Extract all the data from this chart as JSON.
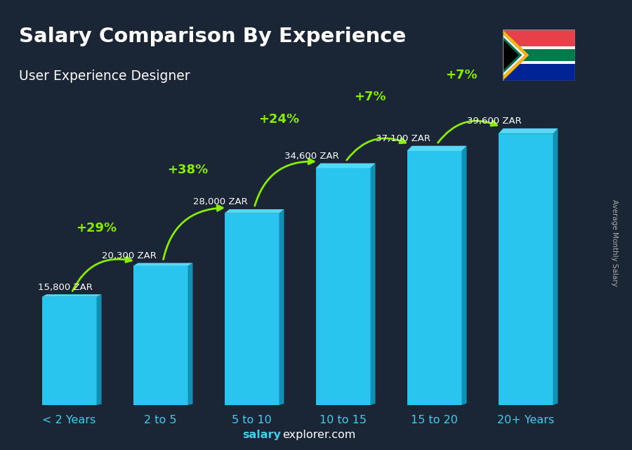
{
  "title": "Salary Comparison By Experience",
  "subtitle": "User Experience Designer",
  "categories": [
    "< 2 Years",
    "2 to 5",
    "5 to 10",
    "10 to 15",
    "15 to 20",
    "20+ Years"
  ],
  "values": [
    15800,
    20300,
    28000,
    34600,
    37100,
    39600
  ],
  "value_labels": [
    "15,800 ZAR",
    "20,300 ZAR",
    "28,000 ZAR",
    "34,600 ZAR",
    "37,100 ZAR",
    "39,600 ZAR"
  ],
  "pct_labels": [
    "+29%",
    "+38%",
    "+24%",
    "+7%",
    "+7%"
  ],
  "bar_face_color": "#29c5ef",
  "bar_right_color": "#1090b5",
  "bar_top_color": "#55d9f6",
  "bg_color": "#1a2535",
  "title_color": "#ffffff",
  "subtitle_color": "#ffffff",
  "value_label_color": "#ffffff",
  "pct_color": "#88ee00",
  "tick_color": "#44ccee",
  "ylabel": "Average Monthly Salary",
  "footer_salary": "salary",
  "footer_rest": "explorer.com",
  "footer_color_bold": "#44ccee",
  "footer_color_rest": "#ffffff",
  "ylabel_color": "#aaaaaa",
  "ylim_max": 46000,
  "bar_width": 0.6,
  "x_positions": [
    0,
    1,
    2,
    3,
    4,
    5
  ]
}
